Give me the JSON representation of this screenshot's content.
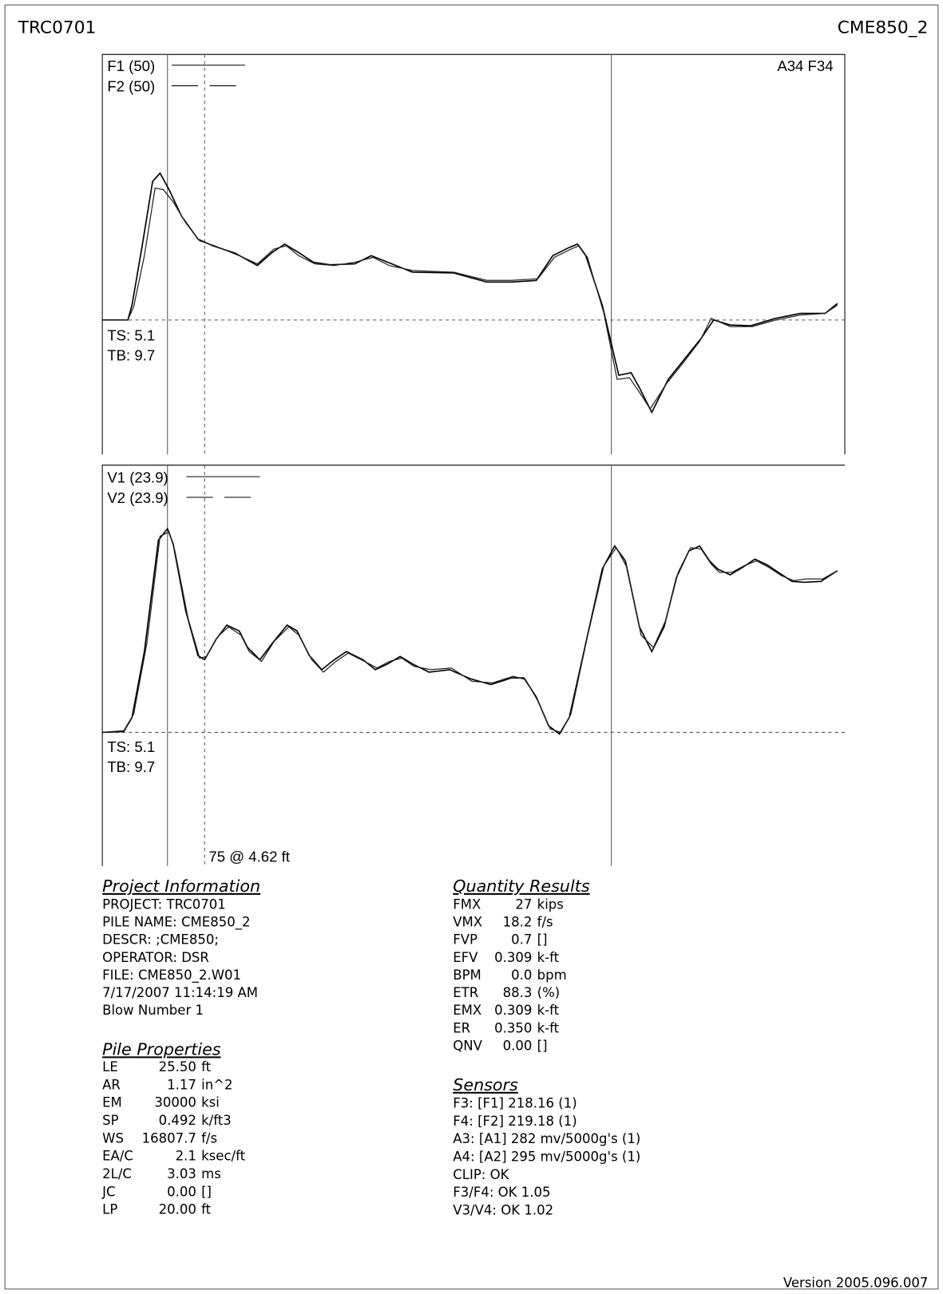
{
  "header": {
    "left": "TRC0701",
    "right": "CME850_2"
  },
  "force_plot": {
    "legend": [
      "F1 (50)",
      "F2 (50)"
    ],
    "corner": "A34 F34",
    "labels": [
      "TS: 5.1",
      "TB: 9.7"
    ]
  },
  "velocity_plot": {
    "legend": [
      "V1 (23.9)",
      "V2 (23.9)"
    ],
    "labels": [
      "TS: 5.1",
      "TB: 9.7"
    ],
    "marker": "75 @ 4.62 ft"
  },
  "project_information": {
    "title": "Project Information",
    "lines": [
      "PROJECT: TRC0701",
      "PILE NAME: CME850_2",
      "DESCR: ;CME850;",
      "OPERATOR: DSR",
      "FILE: CME850_2.W01",
      "7/17/2007 11:14:19 AM",
      "Blow Number 1"
    ]
  },
  "pile_properties": {
    "title": "Pile Properties",
    "rows": [
      [
        "LE",
        "25.50",
        "ft"
      ],
      [
        "AR",
        "1.17",
        "in^2"
      ],
      [
        "EM",
        "30000",
        "ksi"
      ],
      [
        "SP",
        "0.492",
        "k/ft3"
      ],
      [
        "WS",
        "16807.7",
        "f/s"
      ],
      [
        "EA/C",
        "2.1",
        "ksec/ft"
      ],
      [
        "2L/C",
        "3.03",
        "ms"
      ],
      [
        "JC",
        "0.00",
        "[]"
      ],
      [
        "LP",
        "20.00",
        "ft"
      ]
    ]
  },
  "quantity_results": {
    "title": "Quantity Results",
    "rows": [
      [
        "FMX",
        "27",
        "kips"
      ],
      [
        "VMX",
        "18.2",
        "f/s"
      ],
      [
        "FVP",
        "0.7",
        "[]"
      ],
      [
        "EFV",
        "0.309",
        "k-ft"
      ],
      [
        "BPM",
        "0.0",
        "bpm"
      ],
      [
        "ETR",
        "88.3",
        "(%)"
      ],
      [
        "EMX",
        "0.309",
        "k-ft"
      ],
      [
        "ER",
        "0.350",
        "k-ft"
      ],
      [
        "QNV",
        "0.00",
        "[]"
      ]
    ]
  },
  "sensors": {
    "title": "Sensors",
    "lines": [
      "F3: [F1] 218.16 (1)",
      "F4: [F2] 219.18 (1)",
      "A3: [A1] 282 mv/5000g's (1)",
      "A4: [A2] 295 mv/5000g's (1)",
      "CLIP: OK",
      "F3/F4: OK 1.05",
      "V3/V4: OK 1.02"
    ]
  },
  "footer": {
    "version": "Version 2005.096.007"
  }
}
